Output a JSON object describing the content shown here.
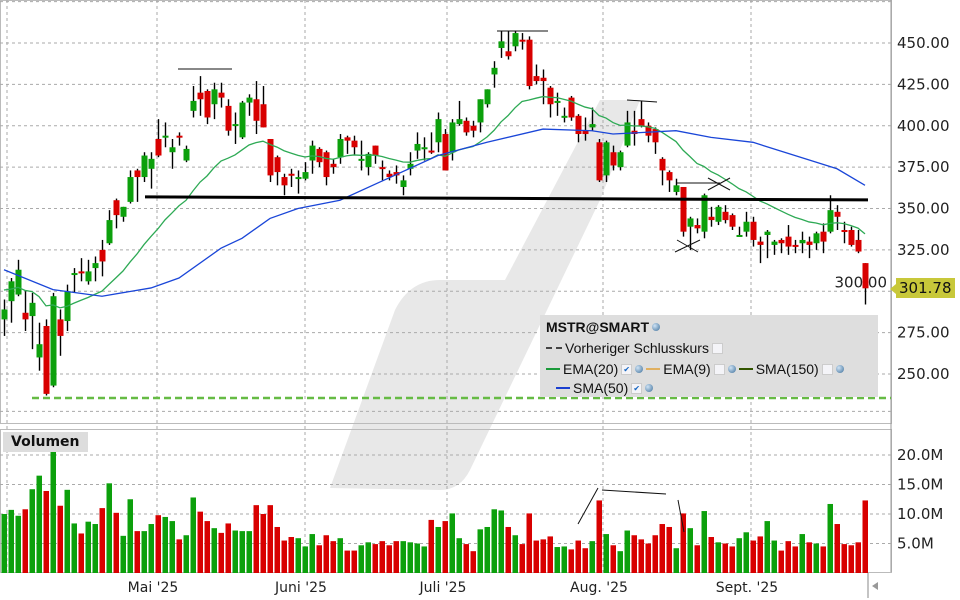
{
  "chart_data": {
    "type": "candlestick",
    "symbol": "MSTR@SMART",
    "x_tick_labels": [
      "Mai '25",
      "Juni '25",
      "Juli '25",
      "Aug. '25",
      "Sept. '25"
    ],
    "y_tick_labels": [
      "450.00",
      "425.00",
      "400.00",
      "375.00",
      "350.00",
      "325.00",
      "300.00",
      "275.00",
      "250.00"
    ],
    "ylim": [
      225,
      475
    ],
    "volume_tick_labels": [
      "20.0M",
      "15.0M",
      "10.0M",
      "5.0M"
    ],
    "volume_ylim_millions": [
      0,
      25
    ],
    "volume_title": "Volumen",
    "last_price": "301.78",
    "grid": true,
    "legend_placement": "bottom-right",
    "legend": {
      "title": "MSTR@SMART",
      "items": [
        {
          "label": "Vorheriger Schlusskurs",
          "style": "dashed",
          "color": "#444444",
          "checked": false
        },
        {
          "label": "EMA(20)",
          "color": "#1a9a3a",
          "checked": true
        },
        {
          "label": "EMA(9)",
          "color": "#e0b060",
          "checked": false
        },
        {
          "label": "SMA(150)",
          "color": "#335500",
          "checked": false
        },
        {
          "label": "SMA(50)",
          "color": "#1a3fd0",
          "checked": true
        }
      ]
    },
    "colors": {
      "up": "#0ca00c",
      "down": "#d80000",
      "ema20": "#2eaa55",
      "sma50": "#1a46d8",
      "support": "#000000",
      "prev_close": "#66bb44"
    },
    "support_level": 357,
    "previous_close_level": 235.5,
    "ohlc": [
      [
        283,
        295,
        273,
        289
      ],
      [
        294,
        308,
        281,
        306
      ],
      [
        298,
        319,
        297,
        313
      ],
      [
        287,
        300,
        276,
        283
      ],
      [
        285,
        299,
        265,
        293
      ],
      [
        260,
        281,
        252,
        268
      ],
      [
        279,
        283,
        237,
        238
      ],
      [
        243,
        299,
        242,
        297
      ],
      [
        283,
        289,
        261,
        273
      ],
      [
        282,
        304,
        276,
        300
      ],
      [
        310,
        314,
        299,
        311
      ],
      [
        312,
        320,
        306,
        311
      ],
      [
        306,
        319,
        304,
        312
      ],
      [
        314,
        321,
        306,
        317
      ],
      [
        325,
        331,
        309,
        318
      ],
      [
        329,
        349,
        328,
        343
      ],
      [
        355,
        356,
        338,
        346
      ],
      [
        345,
        351,
        342,
        351
      ],
      [
        354,
        373,
        353,
        369
      ],
      [
        373,
        374,
        354,
        369
      ],
      [
        369,
        384,
        366,
        382
      ],
      [
        374,
        384,
        362,
        380
      ],
      [
        392,
        404,
        381,
        382
      ],
      [
        393,
        402,
        387,
        394
      ],
      [
        384,
        392,
        374,
        387
      ],
      [
        394,
        396,
        388,
        393
      ],
      [
        379,
        388,
        378,
        386
      ],
      [
        409,
        424,
        405,
        415
      ],
      [
        420,
        430,
        406,
        416
      ],
      [
        421,
        422,
        401,
        405
      ],
      [
        413,
        426,
        404,
        422
      ],
      [
        420,
        426,
        411,
        417
      ],
      [
        412,
        416,
        394,
        397
      ],
      [
        400,
        408,
        389,
        401
      ],
      [
        393,
        415,
        392,
        414
      ],
      [
        414,
        419,
        406,
        417
      ],
      [
        416,
        427,
        395,
        403
      ],
      [
        413,
        424,
        399,
        399
      ],
      [
        392,
        392,
        366,
        370
      ],
      [
        381,
        382,
        364,
        372
      ],
      [
        369,
        371,
        358,
        364
      ],
      [
        371,
        374,
        363,
        370
      ],
      [
        368,
        373,
        359,
        369
      ],
      [
        368,
        378,
        367,
        372
      ],
      [
        379,
        391,
        371,
        388
      ],
      [
        386,
        387,
        375,
        378
      ],
      [
        384,
        385,
        364,
        369
      ],
      [
        377,
        380,
        371,
        375
      ],
      [
        381,
        395,
        377,
        392
      ],
      [
        393,
        394,
        383,
        391
      ],
      [
        391,
        394,
        382,
        387
      ],
      [
        379,
        391,
        373,
        380
      ],
      [
        375,
        384,
        370,
        383
      ],
      [
        388,
        388,
        377,
        382
      ],
      [
        375,
        379,
        367,
        374
      ],
      [
        371,
        373,
        367,
        369
      ],
      [
        372,
        376,
        365,
        370
      ],
      [
        363,
        370,
        358,
        367
      ],
      [
        374,
        384,
        370,
        377
      ],
      [
        385,
        396,
        380,
        389
      ],
      [
        386,
        393,
        379,
        387
      ],
      [
        385,
        396,
        383,
        384
      ],
      [
        390,
        408,
        384,
        404
      ],
      [
        395,
        398,
        373,
        373
      ],
      [
        384,
        404,
        379,
        402
      ],
      [
        401,
        415,
        400,
        404
      ],
      [
        403,
        405,
        394,
        396
      ],
      [
        400,
        403,
        393,
        397
      ],
      [
        402,
        416,
        396,
        416
      ],
      [
        413,
        422,
        411,
        422
      ],
      [
        431,
        439,
        423,
        435
      ],
      [
        447,
        457,
        441,
        451
      ],
      [
        445,
        457,
        440,
        442
      ],
      [
        448,
        457,
        445,
        456
      ],
      [
        452,
        456,
        446,
        451
      ],
      [
        452,
        454,
        422,
        424
      ],
      [
        430,
        437,
        425,
        427
      ],
      [
        429,
        434,
        413,
        427
      ],
      [
        423,
        424,
        405,
        413
      ],
      [
        414,
        420,
        406,
        415
      ],
      [
        405,
        411,
        402,
        406
      ],
      [
        417,
        418,
        403,
        405
      ],
      [
        406,
        407,
        390,
        395
      ],
      [
        397,
        405,
        391,
        395
      ],
      [
        399,
        411,
        397,
        401
      ],
      [
        390,
        392,
        366,
        367
      ],
      [
        370,
        391,
        366,
        390
      ],
      [
        384,
        388,
        373,
        376
      ],
      [
        375,
        385,
        373,
        384
      ],
      [
        388,
        409,
        387,
        402
      ],
      [
        397,
        409,
        388,
        395
      ],
      [
        404,
        415,
        399,
        400
      ],
      [
        400,
        402,
        390,
        394
      ],
      [
        398,
        399,
        383,
        390
      ],
      [
        380,
        381,
        364,
        373
      ],
      [
        372,
        373,
        360,
        367
      ],
      [
        360,
        368,
        358,
        364
      ],
      [
        363,
        363,
        333,
        336
      ],
      [
        339,
        345,
        325,
        344
      ],
      [
        340,
        344,
        335,
        338
      ],
      [
        336,
        359,
        332,
        358
      ],
      [
        345,
        351,
        339,
        343
      ],
      [
        342,
        352,
        340,
        351
      ],
      [
        348,
        352,
        341,
        343
      ],
      [
        346,
        347,
        337,
        339
      ],
      [
        333,
        339,
        333,
        334
      ],
      [
        336,
        348,
        333,
        342
      ],
      [
        342,
        345,
        327,
        331
      ],
      [
        330,
        333,
        317,
        328
      ],
      [
        334,
        337,
        320,
        336
      ],
      [
        328,
        331,
        322,
        330
      ],
      [
        331,
        332,
        323,
        329
      ],
      [
        333,
        340,
        322,
        327
      ],
      [
        328,
        331,
        323,
        327
      ],
      [
        329,
        336,
        323,
        331
      ],
      [
        330,
        333,
        320,
        328
      ],
      [
        329,
        336,
        325,
        335
      ],
      [
        336,
        341,
        323,
        330
      ],
      [
        336,
        358,
        335,
        349
      ],
      [
        348,
        352,
        337,
        345
      ],
      [
        337,
        342,
        329,
        336
      ],
      [
        337,
        339,
        327,
        328
      ],
      [
        331,
        337,
        323,
        324
      ],
      [
        317,
        317,
        292,
        301.78
      ]
    ],
    "volume_millions": [
      10.0,
      10.7,
      9.7,
      10.8,
      14.2,
      16.5,
      13.9,
      23.3,
      11.4,
      14.1,
      8.4,
      6.7,
      8.7,
      8.3,
      11.0,
      15.2,
      10.2,
      6.3,
      12.5,
      7.1,
      7.1,
      8.3,
      9.8,
      9.5,
      8.8,
      5.7,
      6.4,
      12.8,
      10.4,
      8.8,
      7.6,
      6.8,
      8.4,
      7.2,
      7.1,
      7.1,
      11.5,
      10.0,
      11.5,
      7.8,
      5.5,
      6.1,
      5.9,
      4.5,
      6.6,
      4.7,
      6.4,
      5.4,
      5.9,
      3.8,
      3.8,
      4.7,
      5.2,
      4.9,
      5.4,
      4.7,
      5.4,
      5.4,
      5.2,
      5.0,
      4.5,
      9.0,
      7.8,
      8.8,
      10.1,
      5.9,
      4.9,
      3.7,
      7.4,
      7.8,
      10.8,
      10.6,
      7.8,
      6.4,
      4.9,
      10.1,
      5.5,
      5.7,
      6.2,
      4.4,
      4.5,
      4.0,
      5.5,
      4.2,
      5.4,
      12.3,
      6.6,
      4.7,
      3.7,
      7.2,
      6.4,
      5.7,
      5.0,
      6.4,
      8.3,
      7.8,
      4.2,
      10.1,
      7.6,
      4.7,
      10.5,
      6.1,
      5.2,
      5.0,
      4.5,
      5.9,
      6.9,
      5.5,
      6.2,
      8.8,
      5.5,
      3.8,
      5.4,
      4.5,
      6.6,
      5.2,
      5.0,
      4.5,
      11.7,
      8.3,
      4.9,
      4.7,
      5.2,
      12.3
    ],
    "ema20_seed": 302,
    "sma50_points": [
      {
        "bar": 0,
        "value": 313
      },
      {
        "bar": 7,
        "value": 301
      },
      {
        "bar": 14,
        "value": 297
      },
      {
        "bar": 21,
        "value": 302
      },
      {
        "bar": 25,
        "value": 308
      },
      {
        "bar": 31,
        "value": 326
      },
      {
        "bar": 34,
        "value": 332
      },
      {
        "bar": 38,
        "value": 344
      },
      {
        "bar": 42,
        "value": 350
      },
      {
        "bar": 48,
        "value": 355
      },
      {
        "bar": 62,
        "value": 382
      },
      {
        "bar": 69,
        "value": 390
      },
      {
        "bar": 77,
        "value": 398
      },
      {
        "bar": 84,
        "value": 397
      },
      {
        "bar": 87,
        "value": 395
      },
      {
        "bar": 96,
        "value": 397
      },
      {
        "bar": 101,
        "value": 393
      },
      {
        "bar": 107,
        "value": 390
      },
      {
        "bar": 116,
        "value": 378
      },
      {
        "bar": 119,
        "value": 374
      },
      {
        "bar": 123,
        "value": 364
      }
    ]
  }
}
